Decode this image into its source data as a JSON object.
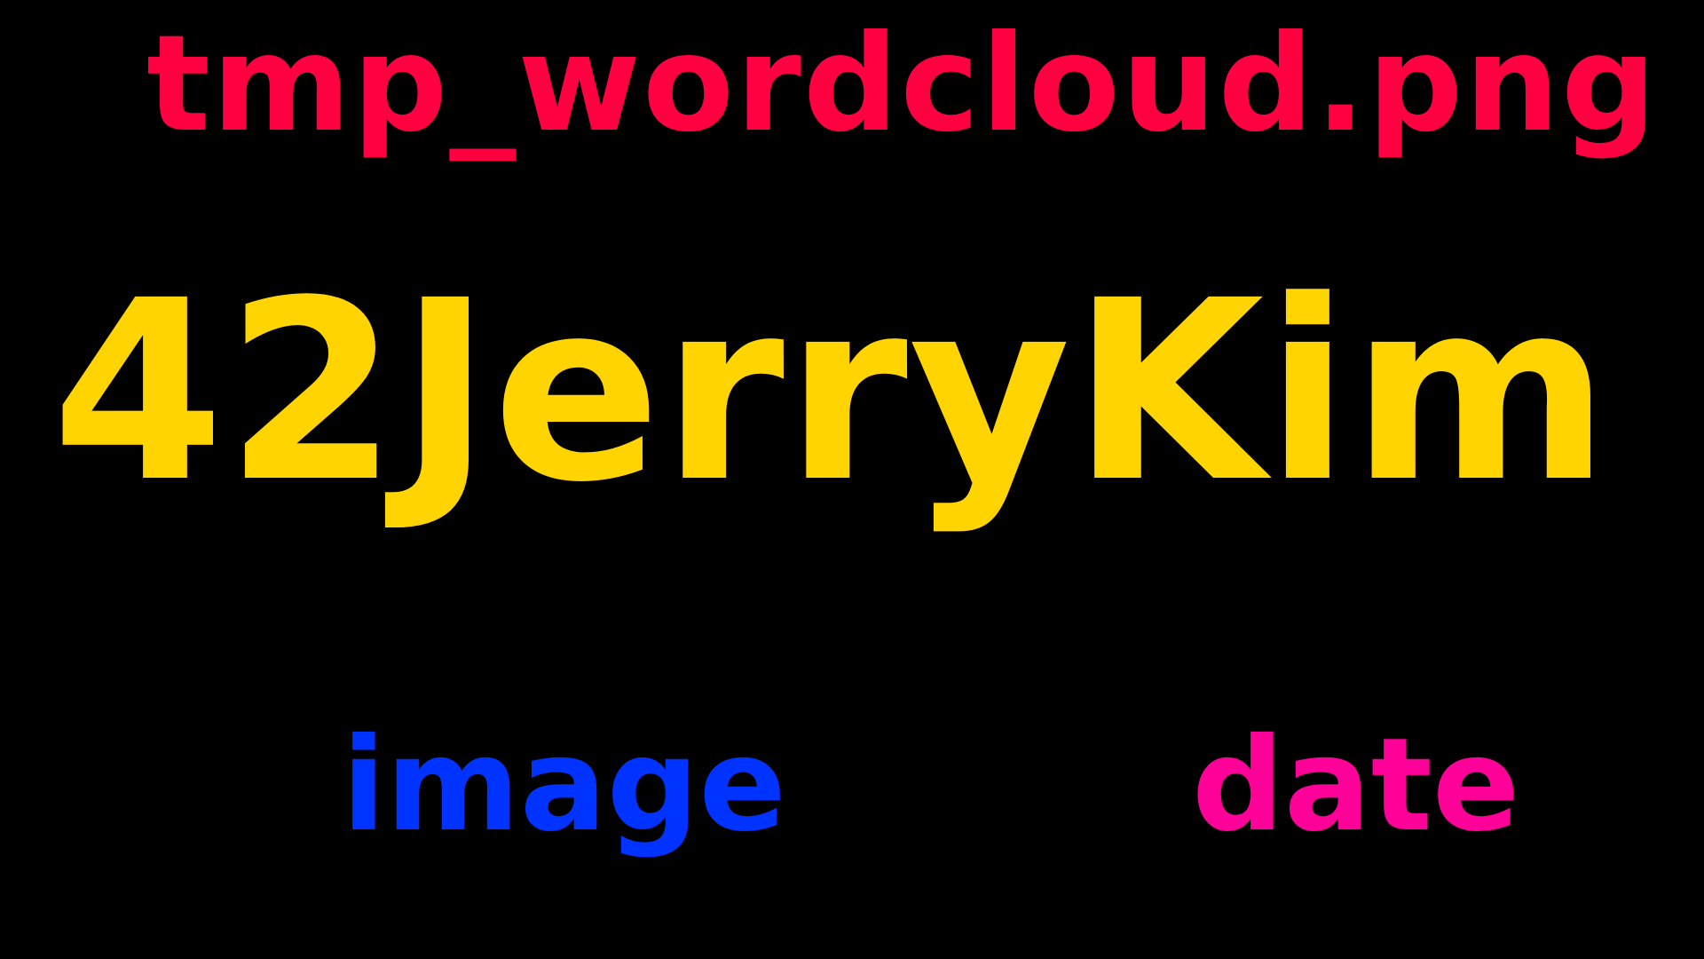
{
  "words": [
    {
      "id": "file",
      "text": "tmp_wordcloud.png",
      "color": "#ff0040"
    },
    {
      "id": "main",
      "text": "42JerryKim",
      "color": "#ffd400"
    },
    {
      "id": "image",
      "text": "image",
      "color": "#0033ff"
    },
    {
      "id": "date",
      "text": "date",
      "color": "#ff0099"
    }
  ],
  "background_color": "#000000"
}
